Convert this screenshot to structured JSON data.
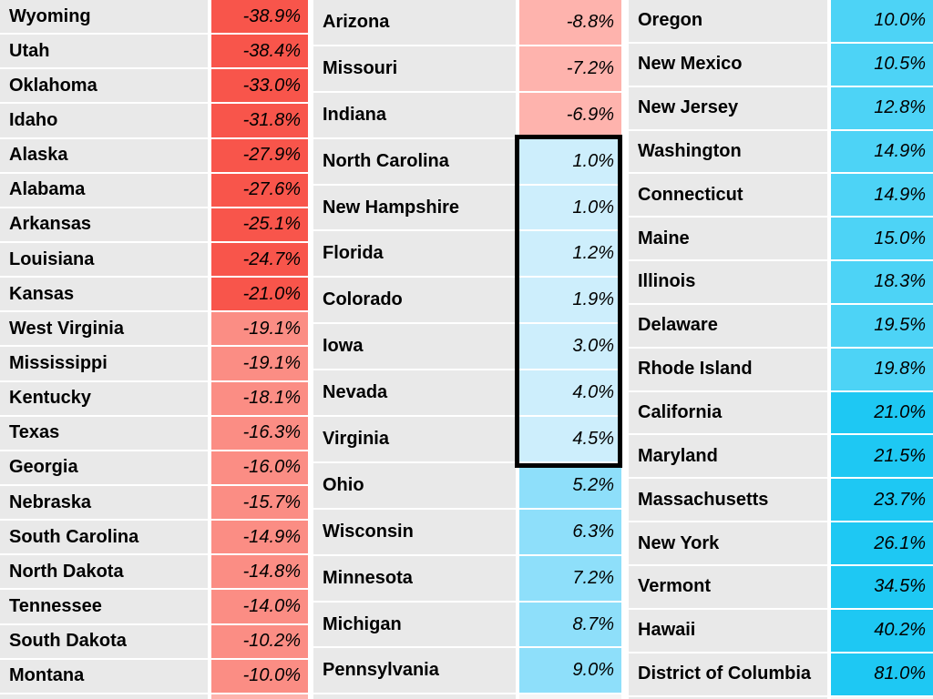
{
  "colors": {
    "strong_red": "#f8554b",
    "medium_red": "#fb8d84",
    "pink": "#feb3ad",
    "pale_blue": "#cdeefc",
    "light_sky_blue": "#8edffa",
    "sky_blue": "#4dd3f6",
    "cyan": "#1ec8f3",
    "label_background": "#e9e9e9",
    "divider": "#ffffff",
    "selection_border": "#000000"
  },
  "selection": {
    "first_state": "North Carolina",
    "last_state": "Virginia"
  },
  "tables": [
    {
      "id": "table-1",
      "rows": [
        {
          "state": "Wyoming",
          "value": "-38.9%",
          "color": "#f8554b"
        },
        {
          "state": "Utah",
          "value": "-38.4%",
          "color": "#f8554b"
        },
        {
          "state": "Oklahoma",
          "value": "-33.0%",
          "color": "#f8554b"
        },
        {
          "state": "Idaho",
          "value": "-31.8%",
          "color": "#f8554b"
        },
        {
          "state": "Alaska",
          "value": "-27.9%",
          "color": "#f8554b"
        },
        {
          "state": "Alabama",
          "value": "-27.6%",
          "color": "#f8554b"
        },
        {
          "state": "Arkansas",
          "value": "-25.1%",
          "color": "#f8554b"
        },
        {
          "state": "Louisiana",
          "value": "-24.7%",
          "color": "#f8554b"
        },
        {
          "state": "Kansas",
          "value": "-21.0%",
          "color": "#f8554b"
        },
        {
          "state": "West Virginia",
          "value": "-19.1%",
          "color": "#fb8d84"
        },
        {
          "state": "Mississippi",
          "value": "-19.1%",
          "color": "#fb8d84"
        },
        {
          "state": "Kentucky",
          "value": "-18.1%",
          "color": "#fb8d84"
        },
        {
          "state": "Texas",
          "value": "-16.3%",
          "color": "#fb8d84"
        },
        {
          "state": "Georgia",
          "value": "-16.0%",
          "color": "#fb8d84"
        },
        {
          "state": "Nebraska",
          "value": "-15.7%",
          "color": "#fb8d84"
        },
        {
          "state": "South Carolina",
          "value": "-14.9%",
          "color": "#fb8d84"
        },
        {
          "state": "North Dakota",
          "value": "-14.8%",
          "color": "#fb8d84"
        },
        {
          "state": "Tennessee",
          "value": "-14.0%",
          "color": "#fb8d84"
        },
        {
          "state": "South Dakota",
          "value": "-10.2%",
          "color": "#fb8d84"
        },
        {
          "state": "Montana",
          "value": "-10.0%",
          "color": "#fb8d84"
        }
      ],
      "partial_row_color": "#feb3ad"
    },
    {
      "id": "table-2",
      "rows": [
        {
          "state": "Arizona",
          "value": "-8.8%",
          "color": "#feb3ad"
        },
        {
          "state": "Missouri",
          "value": "-7.2%",
          "color": "#feb3ad"
        },
        {
          "state": "Indiana",
          "value": "-6.9%",
          "color": "#feb3ad"
        },
        {
          "state": "North Carolina",
          "value": "1.0%",
          "color": "#cdeefc"
        },
        {
          "state": "New Hampshire",
          "value": "1.0%",
          "color": "#cdeefc"
        },
        {
          "state": "Florida",
          "value": "1.2%",
          "color": "#cdeefc"
        },
        {
          "state": "Colorado",
          "value": "1.9%",
          "color": "#cdeefc"
        },
        {
          "state": "Iowa",
          "value": "3.0%",
          "color": "#cdeefc"
        },
        {
          "state": "Nevada",
          "value": "4.0%",
          "color": "#cdeefc"
        },
        {
          "state": "Virginia",
          "value": "4.5%",
          "color": "#cdeefc"
        },
        {
          "state": "Ohio",
          "value": "5.2%",
          "color": "#8edffa"
        },
        {
          "state": "Wisconsin",
          "value": "6.3%",
          "color": "#8edffa"
        },
        {
          "state": "Minnesota",
          "value": "7.2%",
          "color": "#8edffa"
        },
        {
          "state": "Michigan",
          "value": "8.7%",
          "color": "#8edffa"
        },
        {
          "state": "Pennsylvania",
          "value": "9.0%",
          "color": "#8edffa"
        }
      ],
      "partial_row_color": "#f5f5f5"
    },
    {
      "id": "table-3",
      "rows": [
        {
          "state": "Oregon",
          "value": "10.0%",
          "color": "#4dd3f6"
        },
        {
          "state": "New Mexico",
          "value": "10.5%",
          "color": "#4dd3f6"
        },
        {
          "state": "New Jersey",
          "value": "12.8%",
          "color": "#4dd3f6"
        },
        {
          "state": "Washington",
          "value": "14.9%",
          "color": "#4dd3f6"
        },
        {
          "state": "Connecticut",
          "value": "14.9%",
          "color": "#4dd3f6"
        },
        {
          "state": "Maine",
          "value": "15.0%",
          "color": "#4dd3f6"
        },
        {
          "state": "Illinois",
          "value": "18.3%",
          "color": "#4dd3f6"
        },
        {
          "state": "Delaware",
          "value": "19.5%",
          "color": "#4dd3f6"
        },
        {
          "state": "Rhode Island",
          "value": "19.8%",
          "color": "#4dd3f6"
        },
        {
          "state": "California",
          "value": "21.0%",
          "color": "#1ec8f3"
        },
        {
          "state": "Maryland",
          "value": "21.5%",
          "color": "#1ec8f3"
        },
        {
          "state": "Massachusetts",
          "value": "23.7%",
          "color": "#1ec8f3"
        },
        {
          "state": "New York",
          "value": "26.1%",
          "color": "#1ec8f3"
        },
        {
          "state": "Vermont",
          "value": "34.5%",
          "color": "#1ec8f3"
        },
        {
          "state": "Hawaii",
          "value": "40.2%",
          "color": "#1ec8f3"
        },
        {
          "state": "District of Columbia",
          "value": "81.0%",
          "color": "#1ec8f3"
        }
      ],
      "partial_row_color": "#f5f5f5"
    }
  ],
  "chart_data": {
    "type": "table",
    "unit": "%",
    "title": "",
    "series": [
      {
        "name": "column-1",
        "states": [
          "Wyoming",
          "Utah",
          "Oklahoma",
          "Idaho",
          "Alaska",
          "Alabama",
          "Arkansas",
          "Louisiana",
          "Kansas",
          "West Virginia",
          "Mississippi",
          "Kentucky",
          "Texas",
          "Georgia",
          "Nebraska",
          "South Carolina",
          "North Dakota",
          "Tennessee",
          "South Dakota",
          "Montana"
        ],
        "values": [
          -38.9,
          -38.4,
          -33.0,
          -31.8,
          -27.9,
          -27.6,
          -25.1,
          -24.7,
          -21.0,
          -19.1,
          -19.1,
          -18.1,
          -16.3,
          -16.0,
          -15.7,
          -14.9,
          -14.8,
          -14.0,
          -10.2,
          -10.0
        ]
      },
      {
        "name": "column-2",
        "states": [
          "Arizona",
          "Missouri",
          "Indiana",
          "North Carolina",
          "New Hampshire",
          "Florida",
          "Colorado",
          "Iowa",
          "Nevada",
          "Virginia",
          "Ohio",
          "Wisconsin",
          "Minnesota",
          "Michigan",
          "Pennsylvania"
        ],
        "values": [
          -8.8,
          -7.2,
          -6.9,
          1.0,
          1.0,
          1.2,
          1.9,
          3.0,
          4.0,
          4.5,
          5.2,
          6.3,
          7.2,
          8.7,
          9.0
        ]
      },
      {
        "name": "column-3",
        "states": [
          "Oregon",
          "New Mexico",
          "New Jersey",
          "Washington",
          "Connecticut",
          "Maine",
          "Illinois",
          "Delaware",
          "Rhode Island",
          "California",
          "Maryland",
          "Massachusetts",
          "New York",
          "Vermont",
          "Hawaii",
          "District of Columbia"
        ],
        "values": [
          10.0,
          10.5,
          12.8,
          14.9,
          14.9,
          15.0,
          18.3,
          19.5,
          19.8,
          21.0,
          21.5,
          23.7,
          26.1,
          34.5,
          40.2,
          81.0
        ]
      }
    ],
    "color_scale": {
      "kind": "diverging-banded",
      "bands": [
        {
          "range": "value <= -20",
          "color": "#f8554b"
        },
        {
          "range": "-20 < value <= -10",
          "color": "#fb8d84"
        },
        {
          "range": "-10 < value < 0",
          "color": "#feb3ad"
        },
        {
          "range": "0 < value < 5",
          "color": "#cdeefc"
        },
        {
          "range": "5 <= value < 10",
          "color": "#8edffa"
        },
        {
          "range": "10 <= value < 20",
          "color": "#4dd3f6"
        },
        {
          "range": "value >= 20",
          "color": "#1ec8f3"
        }
      ]
    },
    "annotations": [
      {
        "type": "selection-box",
        "note": "thick black border around value cells from North Carolina through Virginia"
      }
    ]
  }
}
